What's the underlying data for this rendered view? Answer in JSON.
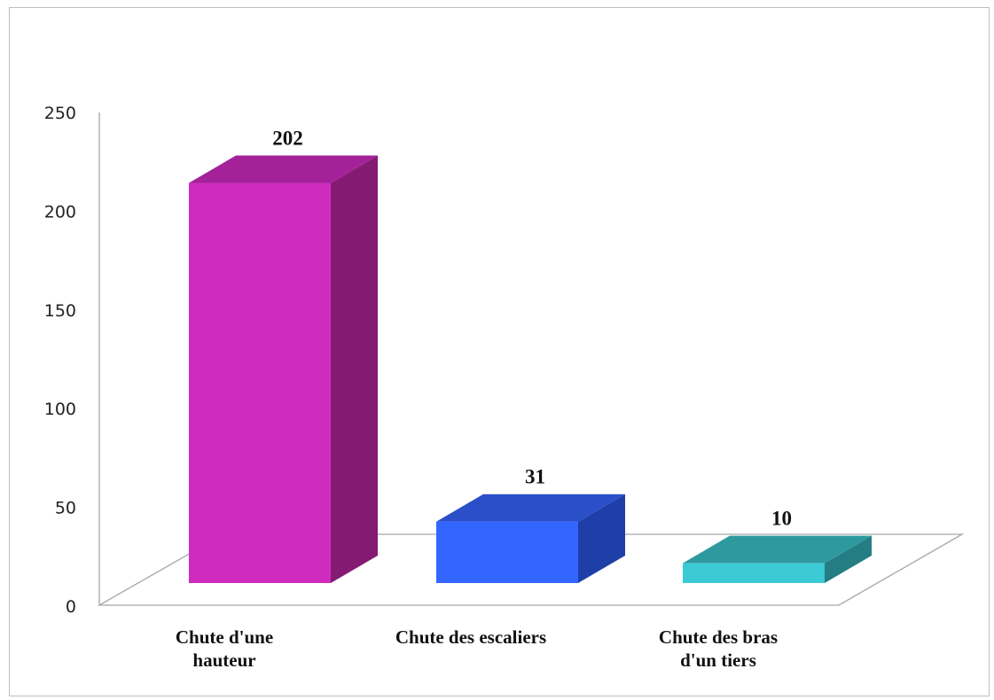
{
  "chart_data": {
    "type": "bar",
    "title": "",
    "xlabel": "",
    "ylabel": "",
    "categories": [
      "Chute d'une\nhauteur",
      "Chute des escaliers",
      "Chute des bras\nd'un tiers"
    ],
    "values": [
      202,
      31,
      10
    ],
    "ylim": [
      0,
      250
    ],
    "yticks": [
      0,
      50,
      100,
      150,
      200,
      250
    ],
    "data_labels": [
      "202",
      "31",
      "10"
    ],
    "grid": false,
    "legend": "none",
    "colors": [
      {
        "front": "#d02bbf",
        "top": "#a3229a",
        "side": "#851a73"
      },
      {
        "front": "#3366ff",
        "top": "#2a4fc8",
        "side": "#1f3fa8"
      },
      {
        "front": "#3ccad4",
        "top": "#2e9aa0",
        "side": "#237d82"
      }
    ]
  }
}
